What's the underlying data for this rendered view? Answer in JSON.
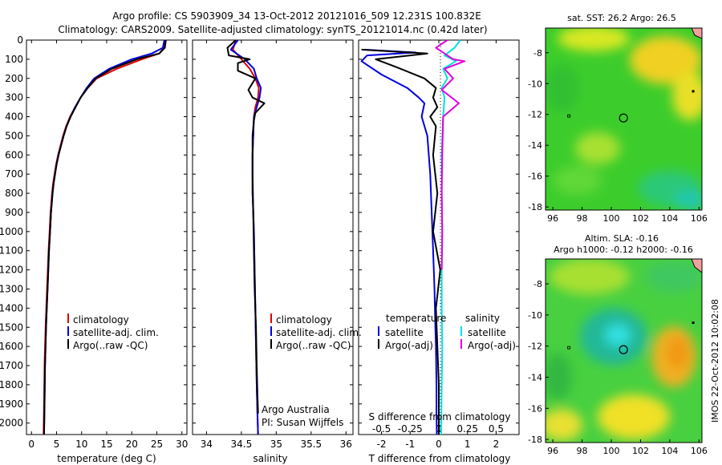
{
  "header": {
    "line1": "Argo profile: CS 5903909_34 13-Oct-2012 20121016_509 12.231S 100.832E",
    "line2": "Climatology: CARS2009. Satellite-adjusted climatology: synTS_20121014.nc (0.42d later)"
  },
  "colors": {
    "climatology": "#e00000",
    "satellite": "#0000e0",
    "argo": "#000000",
    "sal_satellite": "#00e0e0",
    "sal_argo": "#e000e0"
  },
  "depth_axis": {
    "ticks": [
      0,
      100,
      200,
      300,
      400,
      500,
      600,
      700,
      800,
      900,
      1000,
      1100,
      1200,
      1300,
      1400,
      1500,
      1600,
      1700,
      1800,
      1900,
      2000
    ],
    "range": [
      0,
      2060
    ]
  },
  "chart_data": [
    {
      "id": "temperature",
      "type": "line",
      "xlabel": "temperature (deg C)",
      "xlim": [
        -1,
        31
      ],
      "xticks": [
        0,
        5,
        10,
        15,
        20,
        25,
        30
      ],
      "ylim": [
        0,
        2060
      ],
      "legend": [
        "climatology",
        "satellite-adj. clim.",
        "Argo(..raw -QC)"
      ],
      "legend_position": "lower-middle",
      "series": [
        {
          "name": "climatology",
          "color_key": "climatology",
          "x": [
            26.5,
            26.4,
            25.5,
            22,
            17,
            13,
            11.2,
            9.8,
            8.7,
            7.7,
            6.9,
            6.3,
            5.8,
            5.3,
            4.9,
            4.6,
            4.3,
            4.1,
            3.8,
            3.6,
            3.4,
            3.25,
            3.1,
            2.95,
            2.8,
            2.7,
            2.6,
            2.5,
            2.4
          ],
          "y": [
            0,
            40,
            70,
            100,
            150,
            200,
            250,
            300,
            350,
            400,
            450,
            500,
            550,
            600,
            650,
            700,
            750,
            800,
            900,
            1000,
            1100,
            1200,
            1300,
            1400,
            1500,
            1600,
            1700,
            1900,
            2060
          ]
        },
        {
          "name": "satellite-adj. clim.",
          "color_key": "satellite",
          "x": [
            26.5,
            26.2,
            24,
            20,
            15.5,
            12.5,
            11,
            9.8,
            8.7,
            7.8,
            7,
            6.4,
            5.9,
            5.4,
            5,
            4.7,
            4.4,
            4.2,
            3.9,
            3.7,
            3.5,
            3.35,
            3.2,
            3.05,
            2.9,
            2.8,
            2.7,
            2.6,
            2.5
          ],
          "y": [
            0,
            40,
            70,
            100,
            150,
            200,
            250,
            300,
            350,
            400,
            450,
            500,
            550,
            600,
            650,
            700,
            750,
            800,
            900,
            1000,
            1100,
            1200,
            1300,
            1400,
            1500,
            1600,
            1700,
            1900,
            2060
          ]
        },
        {
          "name": "Argo(..raw -QC)",
          "color_key": "argo",
          "x": [
            26.8,
            26.6,
            25.5,
            21,
            16,
            12.8,
            11.2,
            9.8,
            8.8,
            7.8,
            7,
            6.4,
            5.9,
            5.4,
            5,
            4.7,
            4.4,
            4.2,
            3.9,
            3.7,
            3.5,
            3.35,
            3.2,
            3.05,
            2.9,
            2.8,
            2.7,
            2.6,
            2.5
          ],
          "y": [
            0,
            40,
            70,
            100,
            150,
            200,
            250,
            300,
            350,
            400,
            450,
            500,
            550,
            600,
            650,
            700,
            750,
            800,
            900,
            1000,
            1100,
            1200,
            1300,
            1400,
            1500,
            1600,
            1700,
            1900,
            2060
          ]
        }
      ]
    },
    {
      "id": "salinity",
      "type": "line",
      "xlabel": "salinity",
      "xlim": [
        33.8,
        36.1
      ],
      "xticks": [
        34,
        34.5,
        35,
        35.5,
        36
      ],
      "ylim": [
        0,
        2060
      ],
      "legend": [
        "climatology",
        "satellite-adj. clim.",
        "Argo(..raw -QC)"
      ],
      "legend_position": "lower-right",
      "annotation": [
        "Argo Australia",
        "PI: Susan Wijffels"
      ],
      "series": [
        {
          "name": "climatology",
          "color_key": "climatology",
          "x": [
            34.42,
            34.38,
            34.5,
            34.62,
            34.7,
            34.75,
            34.74,
            34.7,
            34.68,
            34.67,
            34.66,
            34.66,
            34.66,
            34.67,
            34.68,
            34.69,
            34.7,
            34.71,
            34.72,
            34.73,
            34.74
          ],
          "y": [
            0,
            50,
            100,
            150,
            200,
            250,
            300,
            350,
            400,
            500,
            600,
            700,
            800,
            900,
            1000,
            1200,
            1400,
            1600,
            1800,
            1950,
            2060
          ]
        },
        {
          "name": "satellite-adj. clim.",
          "color_key": "satellite",
          "x": [
            34.45,
            34.35,
            34.55,
            34.68,
            34.72,
            34.78,
            34.76,
            34.72,
            34.68,
            34.67,
            34.66,
            34.66,
            34.66,
            34.67,
            34.68,
            34.69,
            34.7,
            34.71,
            34.72,
            34.73,
            34.74
          ],
          "y": [
            0,
            50,
            100,
            150,
            200,
            250,
            300,
            350,
            400,
            500,
            600,
            700,
            800,
            900,
            1000,
            1200,
            1400,
            1600,
            1800,
            1950,
            2060
          ]
        },
        {
          "name": "Argo(..raw -QC)",
          "color_key": "argo",
          "x": [
            34.42,
            34.3,
            34.32,
            34.62,
            34.45,
            34.45,
            34.7,
            34.6,
            34.66,
            34.83,
            34.7,
            34.68,
            34.66,
            34.66,
            34.67,
            34.68,
            34.69,
            34.71,
            34.72,
            34.73,
            34.74
          ],
          "y": [
            0,
            40,
            80,
            100,
            120,
            160,
            200,
            260,
            300,
            330,
            380,
            420,
            500,
            700,
            900,
            1100,
            1300,
            1500,
            1700,
            1850,
            1950
          ]
        }
      ]
    },
    {
      "id": "difference",
      "type": "line",
      "xlabel": "T difference from climatology",
      "xlabel_top": "S difference from climatology",
      "xlim": [
        -2.8,
        2.8
      ],
      "xticks": [
        -2,
        -1,
        0,
        1,
        2
      ],
      "xticks_top": [
        "-0.5",
        "-0.25",
        "0",
        "0.25",
        "0.5"
      ],
      "ylim": [
        0,
        2060
      ],
      "legend_headers": [
        "temperature",
        "salinity"
      ],
      "legend": [
        "satellite",
        "Argo(-adj)",
        "satellite",
        "Argo(-adj)"
      ],
      "legend_position": "lower-middle",
      "series": [
        {
          "name": "satellite",
          "group": "temperature",
          "color_key": "satellite",
          "x": [
            -2.6,
            -0.8,
            -2.5,
            -2.7,
            -2,
            -1.1,
            -0.7,
            -0.5,
            -0.6,
            -0.4,
            -0.3,
            -0.25,
            -0.2,
            -0.15,
            -0.12,
            -0.1,
            -0.08,
            -0.08,
            -0.07
          ],
          "y": [
            50,
            65,
            80,
            110,
            180,
            250,
            300,
            330,
            400,
            500,
            700,
            900,
            1100,
            1300,
            1500,
            1600,
            1800,
            1950,
            2060
          ]
        },
        {
          "name": "Argo(-adj)",
          "group": "temperature",
          "color_key": "argo",
          "x": [
            -2.7,
            -0.4,
            -2.2,
            -1.5,
            -0.5,
            -0.1,
            -0.2,
            -0.05,
            -0.3,
            -0.1,
            -0.2,
            -0.05,
            -0.2,
            0.05,
            -0.1,
            -0.05,
            0,
            0,
            0
          ],
          "y": [
            50,
            70,
            100,
            140,
            200,
            250,
            300,
            350,
            400,
            450,
            600,
            800,
            1000,
            1200,
            1400,
            1600,
            1800,
            1950,
            2060
          ]
        },
        {
          "name": "satellite",
          "group": "salinity",
          "color_key": "sal_satellite",
          "x": [
            0.75,
            0.55,
            0.2,
            0.6,
            0.15,
            0.3,
            0.1,
            0.2,
            0.15,
            0.1,
            0.1,
            0.12,
            0.1,
            0.1,
            0.12,
            0.1,
            0.08
          ],
          "y": [
            0,
            40,
            80,
            110,
            150,
            200,
            250,
            300,
            400,
            600,
            800,
            1000,
            1200,
            1400,
            1600,
            1800,
            2060
          ]
        },
        {
          "name": "Argo(-adj)",
          "group": "salinity",
          "color_key": "sal_argo",
          "x": [
            0.3,
            -0.1,
            0.2,
            0.5,
            0.9,
            0.2,
            0.5,
            0.1,
            0.7,
            0.15,
            0.12,
            0.1,
            0.12,
            0.1
          ],
          "y": [
            0,
            40,
            70,
            100,
            110,
            150,
            200,
            260,
            330,
            400,
            600,
            800,
            1000,
            1200
          ]
        }
      ]
    },
    {
      "id": "sst_map",
      "type": "heatmap",
      "title": "sat. SST: 26.2  Argo: 26.5",
      "xticks": [
        96,
        98,
        100,
        102,
        104,
        106
      ],
      "yticks": [
        -8,
        -10,
        -12,
        -14,
        -16,
        -18
      ],
      "xlim": [
        95.5,
        106.2
      ],
      "ylim": [
        -18.2,
        -6.4
      ],
      "marker": {
        "lon": 100.832,
        "lat": -12.231
      }
    },
    {
      "id": "sla_map",
      "type": "heatmap",
      "title": "Altim. SLA: -0.16",
      "subtitle": "Argo h1000: -0.12  h2000: -0.16",
      "xticks": [
        96,
        98,
        100,
        102,
        104,
        106
      ],
      "yticks": [
        -8,
        -10,
        -12,
        -14,
        -16,
        -18
      ],
      "xlim": [
        95.5,
        106.2
      ],
      "ylim": [
        -18.2,
        -6.4
      ],
      "marker": {
        "lon": 100.832,
        "lat": -12.231
      }
    }
  ],
  "footer": {
    "stamp": "IMOS 22-Oct-2012 10:02:08"
  }
}
